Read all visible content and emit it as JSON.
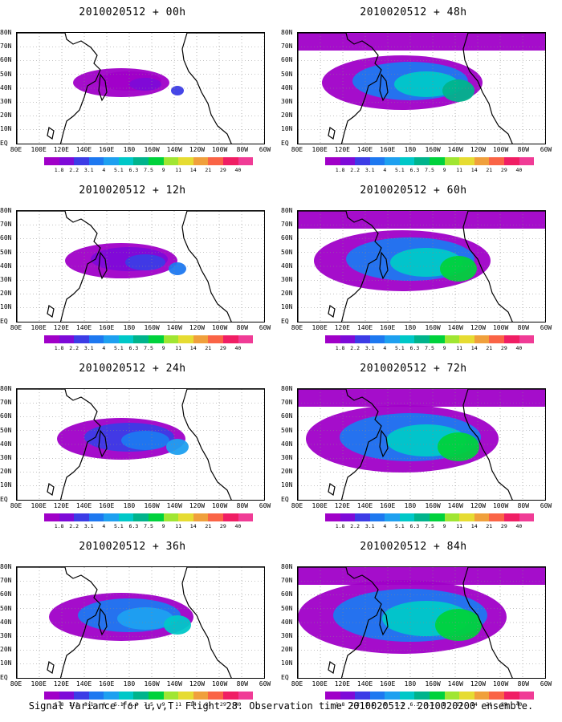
{
  "panels": [
    {
      "title": "2010020512 + 00h"
    },
    {
      "title": "2010020512 + 48h"
    },
    {
      "title": "2010020512 + 12h"
    },
    {
      "title": "2010020512 + 60h"
    },
    {
      "title": "2010020512 + 24h"
    },
    {
      "title": "2010020512 + 72h"
    },
    {
      "title": "2010020512 + 36h"
    },
    {
      "title": "2010020512 + 84h"
    }
  ],
  "x_ticks": [
    "80E",
    "100E",
    "120E",
    "140E",
    "160E",
    "180",
    "160W",
    "140W",
    "120W",
    "100W",
    "80W",
    "60W"
  ],
  "y_ticks": [
    "80N",
    "70N",
    "60N",
    "50N",
    "40N",
    "30N",
    "20N",
    "10N",
    "EQ"
  ],
  "colorbar": {
    "labels": [
      "1.8",
      "2.2",
      "3.1",
      "4",
      "5.1",
      "6.3",
      "7.5",
      "9",
      "11",
      "14",
      "21",
      "29",
      "40"
    ],
    "colors": [
      "#a000c8",
      "#7e0ad8",
      "#3c3ce6",
      "#1e78f0",
      "#1ea0f0",
      "#00c8c8",
      "#00b48c",
      "#00d23c",
      "#a0e632",
      "#e6dc32",
      "#f0a03c",
      "#fa6446",
      "#f01e64",
      "#f03c96"
    ]
  },
  "caption": "Signal Variance for u,v,T. Flight 28. Observation time 2010020512. 2010020200 ensemble."
}
